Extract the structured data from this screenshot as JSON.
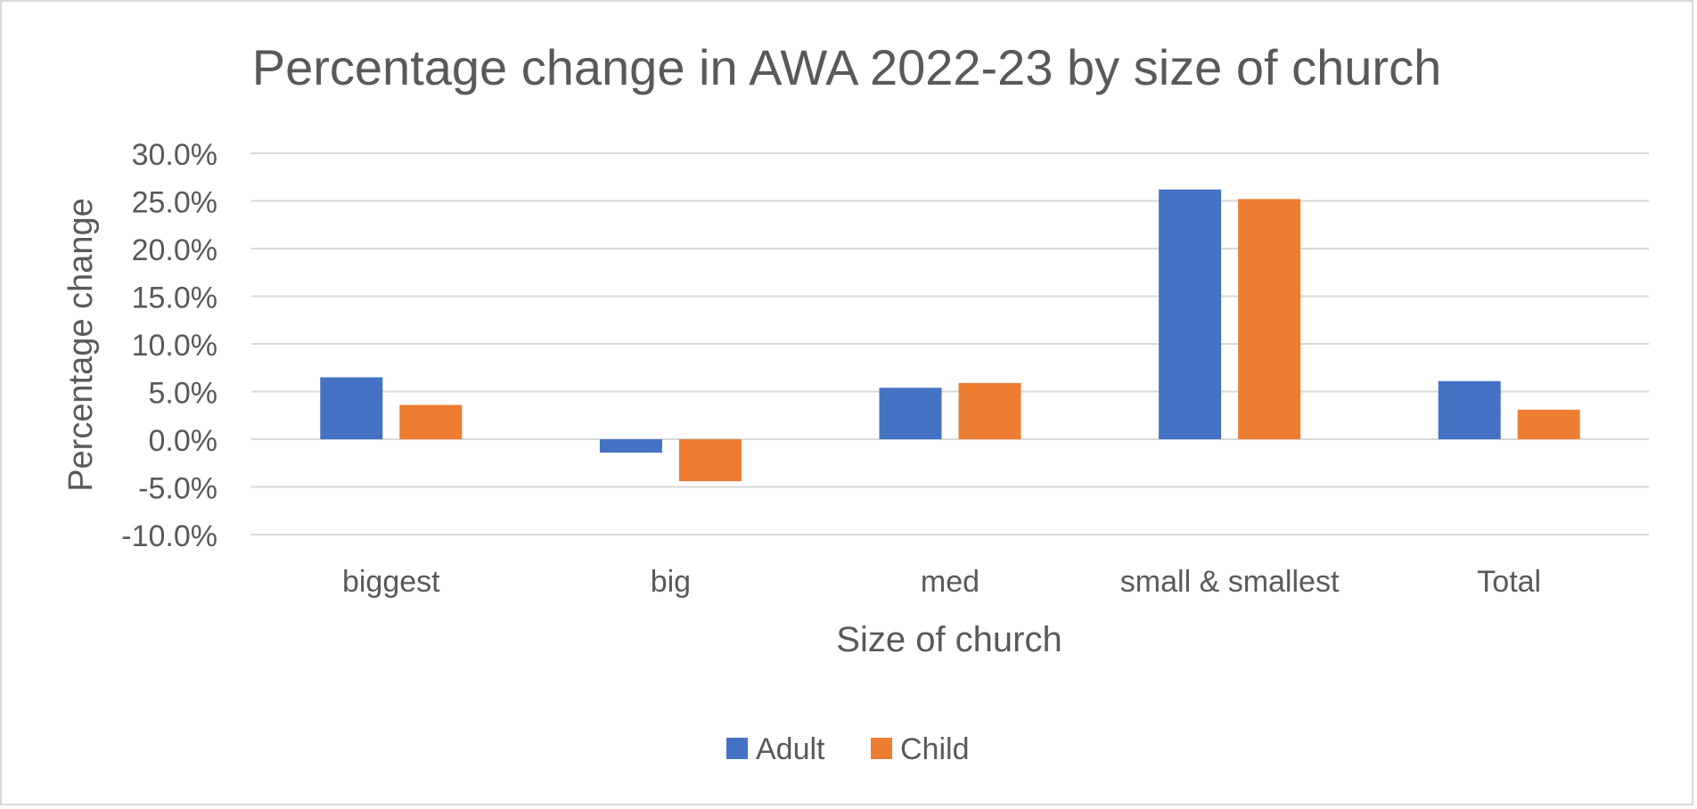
{
  "chart_data": {
    "type": "bar",
    "title": "Percentage change in AWA 2022-23 by size of church",
    "xlabel": "Size of church",
    "ylabel": "Percentage change",
    "categories": [
      "biggest",
      "big",
      "med",
      "small & smallest",
      "Total"
    ],
    "series": [
      {
        "name": "Adult",
        "color": "#4472C4",
        "values": [
          6.5,
          -1.4,
          5.4,
          26.2,
          6.1
        ]
      },
      {
        "name": "Child",
        "color": "#ED7D31",
        "values": [
          3.6,
          -4.4,
          5.9,
          25.2,
          3.1
        ]
      }
    ],
    "ylim": [
      -10,
      30
    ],
    "yticks": [
      30,
      25,
      20,
      15,
      10,
      5,
      0,
      -5,
      -10
    ],
    "ytick_labels": [
      "30.0%",
      "25.0%",
      "20.0%",
      "15.0%",
      "10.0%",
      "5.0%",
      "0.0%",
      "-5.0%",
      "-10.0%"
    ],
    "grid": true,
    "legend_position": "bottom"
  }
}
